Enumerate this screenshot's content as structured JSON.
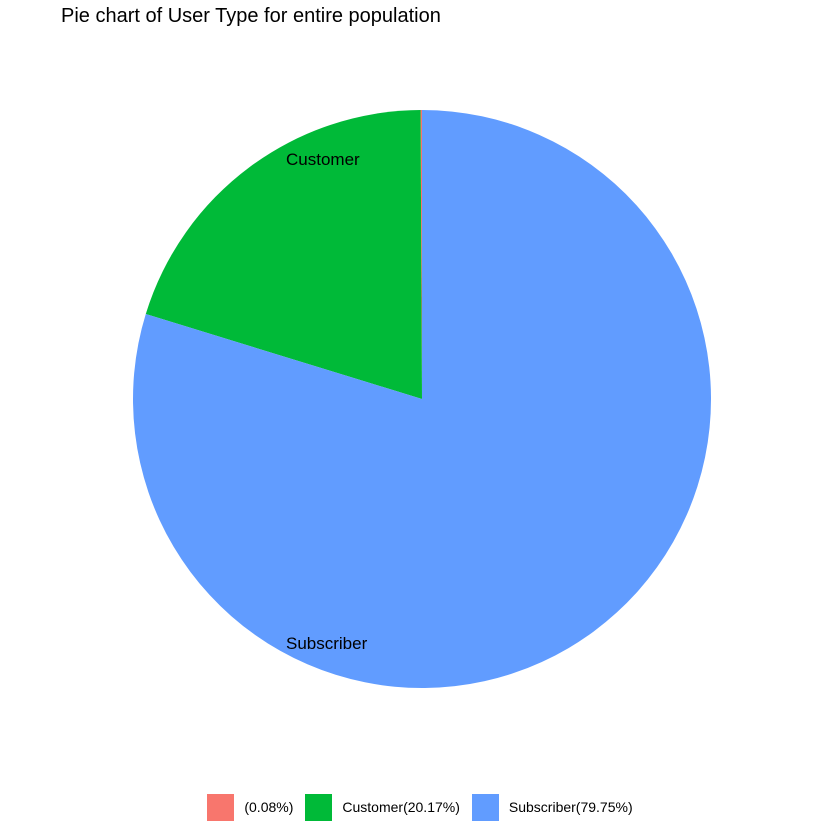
{
  "chart_data": {
    "type": "pie",
    "title": "Pie chart of User Type for entire population",
    "slices": [
      {
        "name": "",
        "value": 0.08,
        "color": "#F8766D",
        "slice_label": "",
        "legend_label": "(0.08%)"
      },
      {
        "name": "Customer",
        "value": 20.17,
        "color": "#00BA38",
        "slice_label": "Customer",
        "legend_label": "Customer(20.17%)"
      },
      {
        "name": "Subscriber",
        "value": 79.75,
        "color": "#619CFF",
        "slice_label": "Subscriber",
        "legend_label": "Subscriber(79.75%)"
      }
    ],
    "unit": "%",
    "legend_position": "bottom",
    "grid": false
  }
}
